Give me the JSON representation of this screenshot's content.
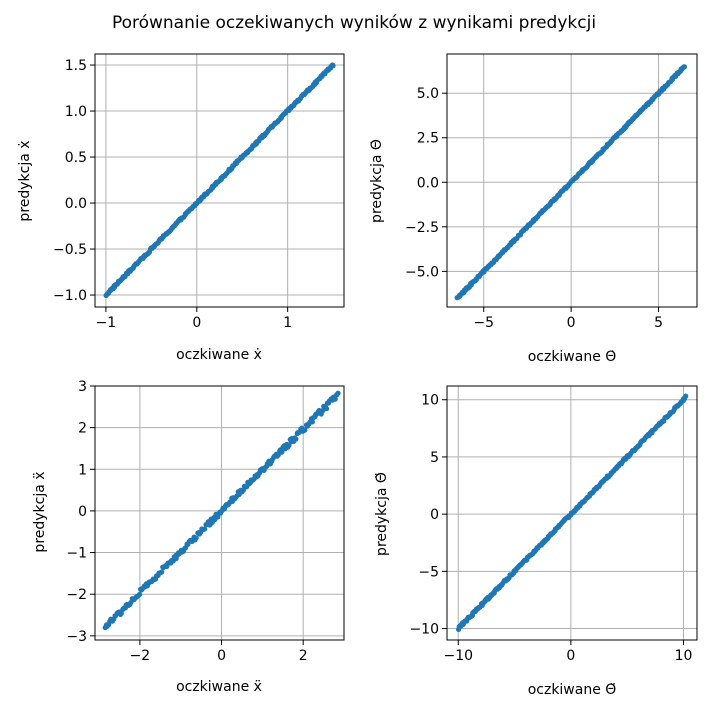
{
  "figure": {
    "suptitle": "Porównanie oczekiwanych wyników z wynikami predykcji",
    "point_color": "#1f77b4",
    "grid_color": "#b0b0b0"
  },
  "chart_data": [
    {
      "type": "scatter",
      "title": "",
      "xlabel": "oczkiwane ẋ",
      "ylabel": "predykcja ẋ",
      "xlim": [
        -1.12,
        1.62
      ],
      "ylim": [
        -1.13,
        1.62
      ],
      "xticks": [
        -1,
        0,
        1
      ],
      "yticks": [
        -1.0,
        -0.5,
        0.0,
        0.5,
        1.0,
        1.5
      ],
      "xtick_labels": [
        "−1",
        "0",
        "1"
      ],
      "ytick_labels": [
        "−1.0",
        "−0.5",
        "0.0",
        "0.5",
        "1.0",
        "1.5"
      ],
      "grid": true,
      "x_range": [
        -1.0,
        1.5
      ],
      "slope": 1.0,
      "noise": 0.012,
      "n_points": 260
    },
    {
      "type": "scatter",
      "title": "",
      "xlabel": "oczkiwane Θ̇",
      "ylabel": "predykcja Θ̇",
      "xlim": [
        -7.1,
        7.2
      ],
      "ylim": [
        -7.0,
        7.2
      ],
      "xticks": [
        -5,
        0,
        5
      ],
      "yticks": [
        -5.0,
        -2.5,
        0.0,
        2.5,
        5.0
      ],
      "xtick_labels": [
        "−5",
        "0",
        "5"
      ],
      "ytick_labels": [
        "−5.0",
        "−2.5",
        "0.0",
        "2.5",
        "5.0"
      ],
      "grid": true,
      "x_range": [
        -6.5,
        6.5
      ],
      "slope": 1.0,
      "noise": 0.05,
      "n_points": 260
    },
    {
      "type": "scatter",
      "title": "",
      "xlabel": "oczkiwane ẍ",
      "ylabel": "predykcja ẍ",
      "xlim": [
        -3.1,
        3.0
      ],
      "ylim": [
        -3.1,
        3.0
      ],
      "xticks": [
        -2,
        0,
        2
      ],
      "yticks": [
        -3,
        -2,
        -1,
        0,
        1,
        2,
        3
      ],
      "xtick_labels": [
        "−2",
        "0",
        "2"
      ],
      "ytick_labels": [
        "−3",
        "−2",
        "−1",
        "0",
        "1",
        "2",
        "3"
      ],
      "grid": true,
      "x_range": [
        -2.85,
        2.85
      ],
      "slope": 0.98,
      "noise": 0.06,
      "n_points": 200
    },
    {
      "type": "scatter",
      "title": "",
      "xlabel": "oczkiwane Θ̈",
      "ylabel": "predykcja Θ̈",
      "xlim": [
        -11.0,
        11.2
      ],
      "ylim": [
        -11.0,
        11.2
      ],
      "xticks": [
        -10,
        0,
        10
      ],
      "yticks": [
        -10,
        -5,
        0,
        5,
        10
      ],
      "xtick_labels": [
        "−10",
        "0",
        "10"
      ],
      "ytick_labels": [
        "−10",
        "−5",
        "0",
        "5",
        "10"
      ],
      "grid": true,
      "x_range": [
        -10.0,
        10.2
      ],
      "slope": 1.0,
      "noise": 0.08,
      "n_points": 260
    }
  ]
}
